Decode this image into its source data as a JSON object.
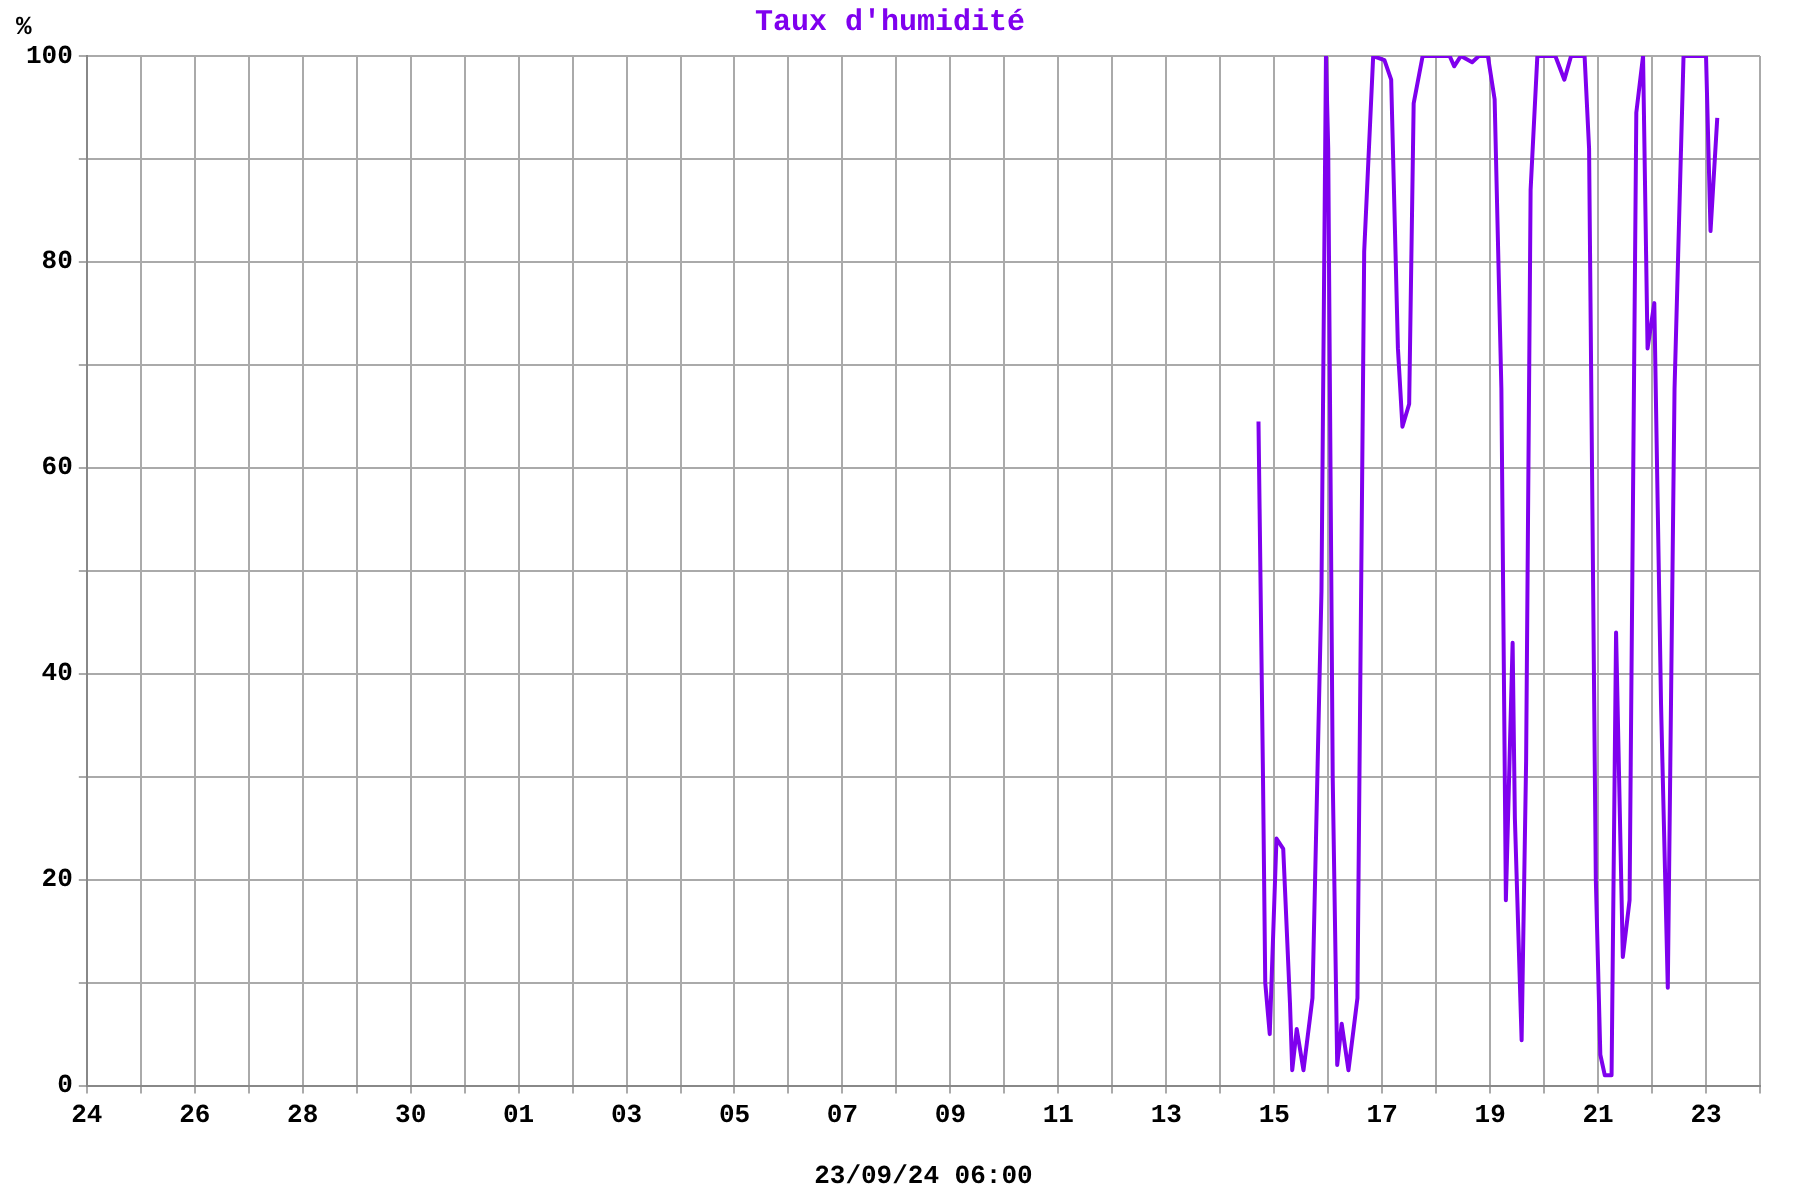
{
  "chart_data": {
    "type": "line",
    "title": "Taux d'humidité",
    "xlabel": "23/09/24 06:00",
    "ylabel": "%",
    "x": [
      "--09-14T17:00",
      "--09-14T19:00",
      "--09-14T20:00",
      "--09-14T22:00",
      "--09-15T01:00",
      "--09-15T04:00",
      "--09-15T07:00",
      "--09-15T08:00",
      "--09-15T10:00",
      "--09-15T13:00",
      "--09-15T17:00",
      "--09-15T21:00",
      "--09-15T23:00",
      "--09-16T00:00",
      "--09-16T02:00",
      "--09-16T04:00",
      "--09-16T06:00",
      "--09-16T09:00",
      "--09-16T13:00",
      "--09-16T16:00",
      "--09-16T20:00",
      "--09-17T01:00",
      "--09-17T04:00",
      "--09-17T07:00",
      "--09-17T09:00",
      "--09-17T12:00",
      "--09-17T14:00",
      "--09-17T18:00",
      "--09-18T06:00",
      "--09-18T08:00",
      "--09-18T11:00",
      "--09-18T16:00",
      "--09-18T19:00",
      "--09-18T23:00",
      "--09-19T02:00",
      "--09-19T05:00",
      "--09-19T07:00",
      "--09-19T10:00",
      "--09-19T11:00",
      "--09-19T14:00",
      "--09-19T16:00",
      "--09-19T18:00",
      "--09-19T21:00",
      "--09-20T05:00",
      "--09-20T09:00",
      "--09-20T12:00",
      "--09-20T18:00",
      "--09-20T20:00",
      "--09-20T23:00",
      "--09-21T01:00",
      "--09-21T03:00",
      "--09-21T06:00",
      "--09-21T08:00",
      "--09-21T11:00",
      "--09-21T14:00",
      "--09-21T17:00",
      "--09-21T20:00",
      "--09-21T22:00",
      "--09-22T01:00",
      "--09-22T04:00",
      "--09-22T07:00",
      "--09-22T10:00",
      "--09-22T14:00",
      "--09-23T00:00",
      "--09-23T02:00",
      "--09-23T05:00"
    ],
    "series": [
      {
        "color": "#7f00ee",
        "values": [
          64.5,
          30,
          10,
          5,
          24,
          23,
          8,
          1.5,
          5.5,
          1.5,
          8.5,
          48,
          100,
          91,
          30,
          2,
          6,
          1.5,
          8.5,
          81,
          100,
          99.6,
          97.7,
          71.6,
          64,
          66.2,
          95.4,
          100,
          100,
          99,
          100,
          99.4,
          100,
          100,
          95.8,
          67.7,
          18,
          43,
          26,
          4.4,
          31.5,
          87,
          100,
          100,
          97.7,
          100,
          100,
          91,
          20,
          3,
          1,
          1,
          44,
          12.5,
          18,
          94.5,
          100,
          71.6,
          76,
          37,
          9.5,
          67.7,
          100,
          100,
          83,
          94
        ]
      }
    ],
    "xlim": [
      "--08-24",
      "--09-24"
    ],
    "xticks": [
      {
        "value": "--08-24",
        "label": "24"
      },
      {
        "value": "--08-25",
        "label": null
      },
      {
        "value": "--08-26",
        "label": "26"
      },
      {
        "value": "--08-27",
        "label": null
      },
      {
        "value": "--08-28",
        "label": "28"
      },
      {
        "value": "--08-29",
        "label": null
      },
      {
        "value": "--08-30",
        "label": "30"
      },
      {
        "value": "--08-31",
        "label": null
      },
      {
        "value": "--09-01",
        "label": "01"
      },
      {
        "value": "--09-02",
        "label": null
      },
      {
        "value": "--09-03",
        "label": "03"
      },
      {
        "value": "--09-04",
        "label": null
      },
      {
        "value": "--09-05",
        "label": "05"
      },
      {
        "value": "--09-06",
        "label": null
      },
      {
        "value": "--09-07",
        "label": "07"
      },
      {
        "value": "--09-08",
        "label": null
      },
      {
        "value": "--09-09",
        "label": "09"
      },
      {
        "value": "--09-10",
        "label": null
      },
      {
        "value": "--09-11",
        "label": "11"
      },
      {
        "value": "--09-12",
        "label": null
      },
      {
        "value": "--09-13",
        "label": "13"
      },
      {
        "value": "--09-14",
        "label": null
      },
      {
        "value": "--09-15",
        "label": "15"
      },
      {
        "value": "--09-16",
        "label": null
      },
      {
        "value": "--09-17",
        "label": "17"
      },
      {
        "value": "--09-18",
        "label": null
      },
      {
        "value": "--09-19",
        "label": "19"
      },
      {
        "value": "--09-20",
        "label": null
      },
      {
        "value": "--09-21",
        "label": "21"
      },
      {
        "value": "--09-22",
        "label": null
      },
      {
        "value": "--09-23",
        "label": "23"
      },
      {
        "value": "--09-24",
        "label": null
      }
    ],
    "ylim": [
      0,
      100
    ],
    "yticks": [
      0,
      {
        "value": 10,
        "label": null
      },
      20,
      {
        "value": 30,
        "label": null
      },
      40,
      {
        "value": 50,
        "label": null
      },
      60,
      {
        "value": 70,
        "label": null
      },
      80,
      {
        "value": 90,
        "label": null
      },
      100
    ],
    "grid": true,
    "legend": false,
    "marker": "none",
    "line_style": "solid"
  }
}
